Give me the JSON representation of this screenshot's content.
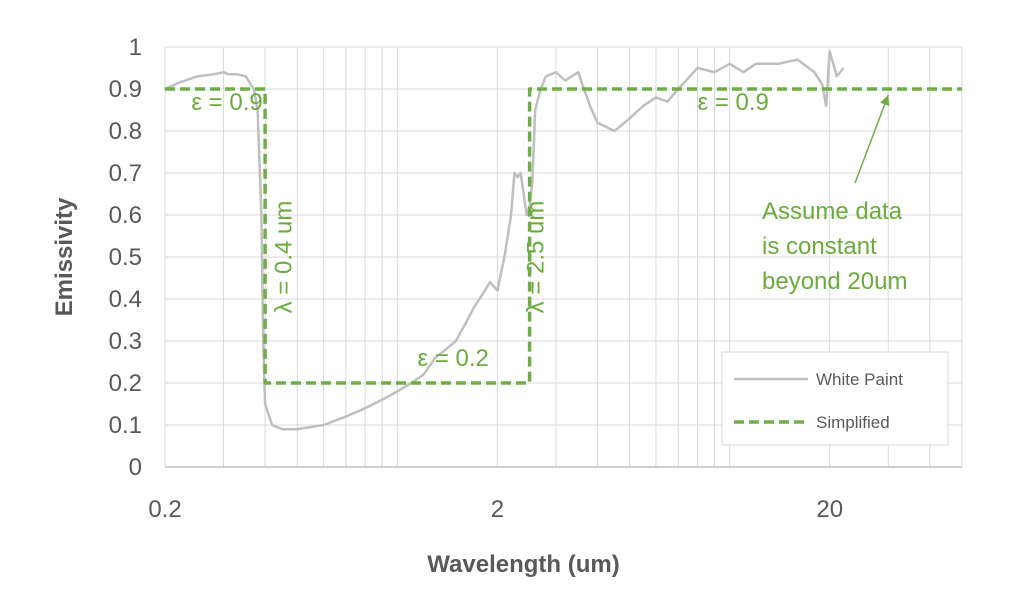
{
  "chart_data": {
    "type": "line",
    "xlabel": "Wavelength (um)",
    "ylabel": "Emissivity",
    "xscale": "log",
    "xlim": [
      0.2,
      50
    ],
    "ylim": [
      0,
      1
    ],
    "x_ticks": [
      {
        "value": 0.2,
        "label": "0.2"
      },
      {
        "value": 2,
        "label": "2"
      },
      {
        "value": 20,
        "label": "20"
      }
    ],
    "y_ticks": [
      {
        "value": 0,
        "label": "0"
      },
      {
        "value": 0.1,
        "label": "0.1"
      },
      {
        "value": 0.2,
        "label": "0.2"
      },
      {
        "value": 0.3,
        "label": "0.3"
      },
      {
        "value": 0.4,
        "label": "0.4"
      },
      {
        "value": 0.5,
        "label": "0.5"
      },
      {
        "value": 0.6,
        "label": "0.6"
      },
      {
        "value": 0.7,
        "label": "0.7"
      },
      {
        "value": 0.8,
        "label": "0.8"
      },
      {
        "value": 0.9,
        "label": "0.9"
      },
      {
        "value": 1,
        "label": "1"
      }
    ],
    "grid": true,
    "legend_position": "bottom-right",
    "series": [
      {
        "name": "White Paint",
        "color": "#bfbfbf",
        "style": "solid",
        "points": [
          [
            0.2,
            0.9
          ],
          [
            0.22,
            0.915
          ],
          [
            0.25,
            0.93
          ],
          [
            0.28,
            0.935
          ],
          [
            0.3,
            0.94
          ],
          [
            0.31,
            0.935
          ],
          [
            0.33,
            0.935
          ],
          [
            0.35,
            0.93
          ],
          [
            0.37,
            0.9
          ],
          [
            0.38,
            0.85
          ],
          [
            0.39,
            0.6
          ],
          [
            0.395,
            0.3
          ],
          [
            0.4,
            0.15
          ],
          [
            0.42,
            0.1
          ],
          [
            0.45,
            0.09
          ],
          [
            0.5,
            0.09
          ],
          [
            0.6,
            0.1
          ],
          [
            0.7,
            0.12
          ],
          [
            0.8,
            0.14
          ],
          [
            0.9,
            0.16
          ],
          [
            1.0,
            0.18
          ],
          [
            1.1,
            0.2
          ],
          [
            1.2,
            0.22
          ],
          [
            1.3,
            0.26
          ],
          [
            1.4,
            0.28
          ],
          [
            1.5,
            0.3
          ],
          [
            1.6,
            0.34
          ],
          [
            1.7,
            0.38
          ],
          [
            1.8,
            0.41
          ],
          [
            1.9,
            0.44
          ],
          [
            2.0,
            0.42
          ],
          [
            2.1,
            0.5
          ],
          [
            2.2,
            0.6
          ],
          [
            2.25,
            0.7
          ],
          [
            2.3,
            0.69
          ],
          [
            2.35,
            0.7
          ],
          [
            2.45,
            0.6
          ],
          [
            2.5,
            0.62
          ],
          [
            2.55,
            0.68
          ],
          [
            2.6,
            0.85
          ],
          [
            2.7,
            0.9
          ],
          [
            2.8,
            0.93
          ],
          [
            3.0,
            0.94
          ],
          [
            3.2,
            0.92
          ],
          [
            3.5,
            0.94
          ],
          [
            3.8,
            0.86
          ],
          [
            4.0,
            0.82
          ],
          [
            4.5,
            0.8
          ],
          [
            5.0,
            0.83
          ],
          [
            5.5,
            0.86
          ],
          [
            6.0,
            0.88
          ],
          [
            6.5,
            0.87
          ],
          [
            7.0,
            0.9
          ],
          [
            8.0,
            0.95
          ],
          [
            9.0,
            0.94
          ],
          [
            10.0,
            0.96
          ],
          [
            11.0,
            0.94
          ],
          [
            12.0,
            0.96
          ],
          [
            14.0,
            0.96
          ],
          [
            16.0,
            0.97
          ],
          [
            18.0,
            0.94
          ],
          [
            19.0,
            0.91
          ],
          [
            19.5,
            0.86
          ],
          [
            20.0,
            0.99
          ],
          [
            21.0,
            0.93
          ],
          [
            22.0,
            0.95
          ]
        ]
      },
      {
        "name": "Simplified",
        "color": "#70ad47",
        "style": "dashed",
        "points": [
          [
            0.2,
            0.9
          ],
          [
            0.4,
            0.9
          ],
          [
            0.4,
            0.2
          ],
          [
            2.5,
            0.2
          ],
          [
            2.5,
            0.9
          ],
          [
            50,
            0.9
          ]
        ]
      }
    ],
    "annotations": [
      {
        "text": "ε = 0.9",
        "x": 0.24,
        "y": 0.85,
        "rotate": false
      },
      {
        "text": "λ = 0.4 um",
        "x": 0.48,
        "y": 0.5,
        "rotate": true
      },
      {
        "text": "ε = 0.2",
        "x": 1.15,
        "y": 0.24,
        "rotate": false
      },
      {
        "text": "λ = 2.5 um",
        "x": 2.75,
        "y": 0.5,
        "rotate": true
      },
      {
        "text": "ε = 0.9",
        "x": 8.0,
        "y": 0.85,
        "rotate": false
      }
    ],
    "callout": {
      "lines": [
        "Assume data",
        "is constant",
        "beyond 20um"
      ],
      "arrow_target": {
        "x": 30,
        "y": 0.9
      }
    }
  }
}
